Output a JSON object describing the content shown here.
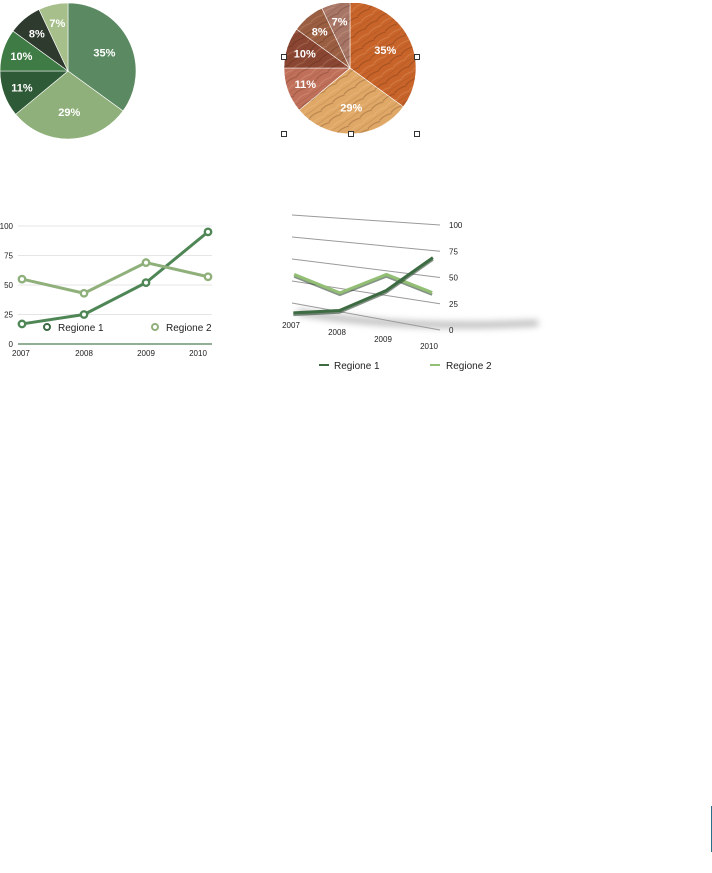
{
  "colors": {
    "green_slices": [
      "#5b8a62",
      "#8fb07a",
      "#2f5a37",
      "#3f7b44",
      "#2e3a2e",
      "#a6bf8b"
    ],
    "wood_slices": [
      "#c8642a",
      "#e0a867",
      "#c0705a",
      "#8a4632",
      "#9a5e42",
      "#a87666"
    ],
    "series1_flat": "#4f8656",
    "series2_flat": "#8fb07a",
    "series1_3d": "#3d6b42",
    "series2_3d": "#93bf74",
    "grid": "#dddddd",
    "axis": "#4f7f58",
    "selection_handle": "#333333"
  },
  "chart_data": [
    {
      "type": "pie",
      "style": "flat-green",
      "values": [
        35,
        29,
        11,
        10,
        8,
        7
      ],
      "labels": [
        "35%",
        "29%",
        "11%",
        "10%",
        "8%",
        "7%"
      ]
    },
    {
      "type": "pie",
      "style": "wood-texture",
      "selected": true,
      "values": [
        35,
        29,
        11,
        10,
        8,
        7
      ],
      "labels": [
        "35%",
        "29%",
        "11%",
        "10%",
        "8%",
        "7%"
      ]
    },
    {
      "type": "line",
      "style": "flat",
      "categories": [
        "2007",
        "2008",
        "2009",
        "2010"
      ],
      "ylim": [
        0,
        100
      ],
      "yticks": [
        "0",
        "25",
        "50",
        "75",
        "100"
      ],
      "grid": true,
      "legend": "inside-bottom",
      "series": [
        {
          "name": "Regione 1",
          "values": [
            17,
            25,
            52,
            95
          ]
        },
        {
          "name": "Regione 2",
          "values": [
            55,
            43,
            69,
            57
          ]
        }
      ]
    },
    {
      "type": "line",
      "style": "3d-perspective",
      "categories": [
        "2007",
        "2008",
        "2009",
        "2010"
      ],
      "ylim": [
        0,
        100
      ],
      "yticks": [
        "0",
        "25",
        "50",
        "75",
        "100"
      ],
      "grid": true,
      "legend": "bottom",
      "series": [
        {
          "name": "Regione 1",
          "values": [
            17,
            25,
            52,
            95
          ]
        },
        {
          "name": "Regione 2",
          "values": [
            55,
            43,
            69,
            57
          ]
        }
      ]
    }
  ]
}
